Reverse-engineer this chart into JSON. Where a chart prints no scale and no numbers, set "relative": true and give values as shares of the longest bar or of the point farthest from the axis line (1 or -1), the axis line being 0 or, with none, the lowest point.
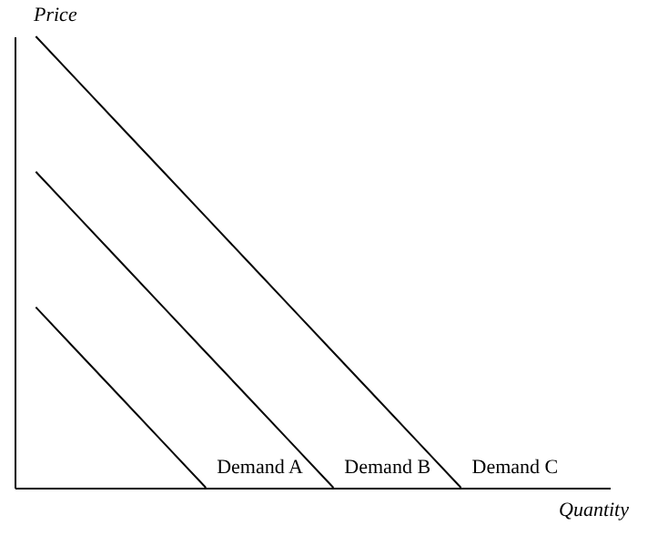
{
  "chart_data": {
    "type": "line",
    "relative": true,
    "xlabel": "Quantity",
    "ylabel": "Price",
    "line_style": "solid",
    "marker": "none",
    "categories": [
      null,
      null,
      null,
      null,
      null,
      null,
      null,
      null,
      null,
      null,
      null,
      null,
      null,
      null
    ],
    "series": [
      {
        "name": "Demand A",
        "color": "#000000",
        "values": [
          0.4,
          0.3,
          0.2,
          0.1,
          0,
          null,
          null,
          null,
          null,
          null,
          null,
          null,
          null,
          null
        ]
      },
      {
        "name": "Demand B",
        "color": "#000000",
        "values": [
          0.7,
          0.6,
          0.5,
          0.4,
          0.3,
          0.2,
          0.1,
          0,
          null,
          null,
          null,
          null,
          null,
          null
        ]
      },
      {
        "name": "Demand C",
        "color": "#000000",
        "values": [
          1.0,
          0.9,
          0.8,
          0.7,
          0.6,
          0.5,
          0.4,
          0.3,
          0.2,
          0.1,
          0,
          null,
          null,
          null
        ]
      }
    ]
  }
}
